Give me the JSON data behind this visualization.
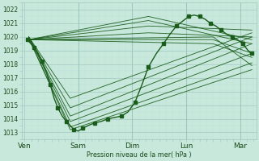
{
  "bg_color": "#c8e8dc",
  "grid_color_major": "#a0c8c0",
  "grid_color_minor": "#b8dcd8",
  "line_color": "#1a5c1a",
  "xlabel": "Pression niveau de la mer( hPa )",
  "ylim": [
    1012.5,
    1022.5
  ],
  "yticks": [
    1013,
    1014,
    1015,
    1016,
    1017,
    1018,
    1019,
    1020,
    1021,
    1022
  ],
  "xtick_labels": [
    "Ven",
    "Sam",
    "Dim",
    "Lun",
    "Mar"
  ],
  "xtick_positions": [
    0,
    1,
    2,
    3,
    4
  ],
  "xlim": [
    -0.05,
    4.3
  ],
  "main_line_x": [
    0.05,
    0.12,
    0.18,
    0.25,
    0.32,
    0.4,
    0.48,
    0.55,
    0.62,
    0.7,
    0.78,
    0.85,
    0.92,
    1.0,
    1.08,
    1.18,
    1.3,
    1.42,
    1.55,
    1.68,
    1.8,
    1.92,
    2.05,
    2.18,
    2.3,
    2.45,
    2.58,
    2.7,
    2.82,
    2.95,
    3.05,
    3.15,
    3.25,
    3.35,
    3.45,
    3.55,
    3.65,
    3.75,
    3.85,
    3.95,
    4.05,
    4.15,
    4.22
  ],
  "main_line_y": [
    1019.8,
    1019.5,
    1019.2,
    1018.8,
    1018.2,
    1017.5,
    1016.5,
    1015.5,
    1014.8,
    1014.2,
    1013.8,
    1013.5,
    1013.2,
    1013.1,
    1013.3,
    1013.5,
    1013.7,
    1013.8,
    1014.0,
    1014.1,
    1014.2,
    1014.5,
    1015.2,
    1016.5,
    1017.8,
    1018.8,
    1019.5,
    1020.2,
    1020.8,
    1021.2,
    1021.5,
    1021.6,
    1021.5,
    1021.3,
    1021.0,
    1020.8,
    1020.5,
    1020.2,
    1020.0,
    1019.8,
    1019.5,
    1019.0,
    1018.8
  ],
  "ensemble_lines": [
    {
      "x": [
        0.08,
        0.85,
        4.22
      ],
      "y": [
        1019.9,
        1013.2,
        1017.6
      ]
    },
    {
      "x": [
        0.08,
        0.85,
        4.22
      ],
      "y": [
        1019.9,
        1013.4,
        1018.1
      ]
    },
    {
      "x": [
        0.08,
        0.85,
        4.22
      ],
      "y": [
        1020.0,
        1013.8,
        1018.8
      ]
    },
    {
      "x": [
        0.08,
        0.85,
        4.22
      ],
      "y": [
        1020.0,
        1014.2,
        1019.5
      ]
    },
    {
      "x": [
        0.08,
        0.85,
        4.22
      ],
      "y": [
        1020.0,
        1014.8,
        1020.0
      ]
    },
    {
      "x": [
        0.08,
        0.85,
        4.22
      ],
      "y": [
        1020.0,
        1015.5,
        1020.3
      ]
    },
    {
      "x": [
        0.08,
        2.3,
        4.22
      ],
      "y": [
        1019.8,
        1021.5,
        1019.8
      ]
    },
    {
      "x": [
        0.08,
        2.3,
        4.22
      ],
      "y": [
        1019.8,
        1021.2,
        1019.5
      ]
    },
    {
      "x": [
        0.08,
        2.3,
        4.22
      ],
      "y": [
        1019.8,
        1020.8,
        1020.5
      ]
    },
    {
      "x": [
        0.08,
        2.3,
        4.22
      ],
      "y": [
        1019.8,
        1020.3,
        1020.0
      ]
    },
    {
      "x": [
        0.08,
        3.5,
        4.22
      ],
      "y": [
        1019.8,
        1020.0,
        1017.9
      ]
    },
    {
      "x": [
        0.08,
        3.5,
        4.22
      ],
      "y": [
        1019.8,
        1019.5,
        1018.5
      ]
    },
    {
      "x": [
        0.08,
        3.5,
        4.22
      ],
      "y": [
        1019.8,
        1019.8,
        1018.8
      ]
    }
  ],
  "vlines_x": [
    1.0,
    2.0,
    3.0,
    4.0
  ],
  "marker_size": 2.2,
  "lw_main": 1.0,
  "lw_ens": 0.65
}
